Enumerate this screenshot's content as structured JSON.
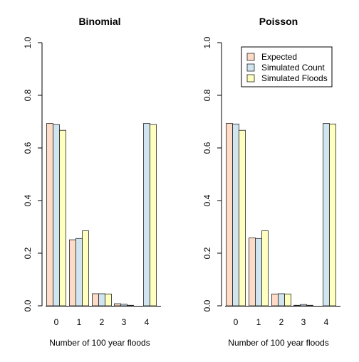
{
  "chart_data": [
    {
      "type": "bar",
      "title": "Binomial",
      "xlabel": "Number of 100 year floods",
      "ylabel": "",
      "ylim": [
        0,
        1
      ],
      "yticks": [
        "0.0",
        "0.2",
        "0.4",
        "0.6",
        "0.8",
        "1.0"
      ],
      "categories": [
        "0",
        "1",
        "2",
        "3",
        "4"
      ],
      "series": [
        {
          "name": "Expected",
          "color": "#FDDBC7",
          "values": [
            0.693,
            0.251,
            0.046,
            0.008,
            null
          ]
        },
        {
          "name": "Simulated Count",
          "color": "#D1E5F0",
          "values": [
            0.689,
            0.256,
            0.046,
            0.006,
            0.693
          ]
        },
        {
          "name": "Simulated Floods",
          "color": "#FFFFBF",
          "values": [
            0.667,
            0.285,
            0.045,
            0.002,
            0.689
          ]
        }
      ],
      "legend": false
    },
    {
      "type": "bar",
      "title": "Poisson",
      "xlabel": "Number of 100 year floods",
      "ylabel": "",
      "ylim": [
        0,
        1
      ],
      "yticks": [
        "0.0",
        "0.2",
        "0.4",
        "0.6",
        "0.8",
        "1.0"
      ],
      "categories": [
        "0",
        "1",
        "2",
        "3",
        "4"
      ],
      "series": [
        {
          "name": "Expected",
          "color": "#FDDBC7",
          "values": [
            0.693,
            0.258,
            0.045,
            0.002,
            null
          ]
        },
        {
          "name": "Simulated Count",
          "color": "#D1E5F0",
          "values": [
            0.691,
            0.256,
            0.046,
            0.005,
            0.693
          ]
        },
        {
          "name": "Simulated Floods",
          "color": "#FFFFBF",
          "values": [
            0.667,
            0.285,
            0.045,
            0.002,
            0.691
          ]
        }
      ],
      "legend": true,
      "legend_position": "top-right"
    }
  ]
}
